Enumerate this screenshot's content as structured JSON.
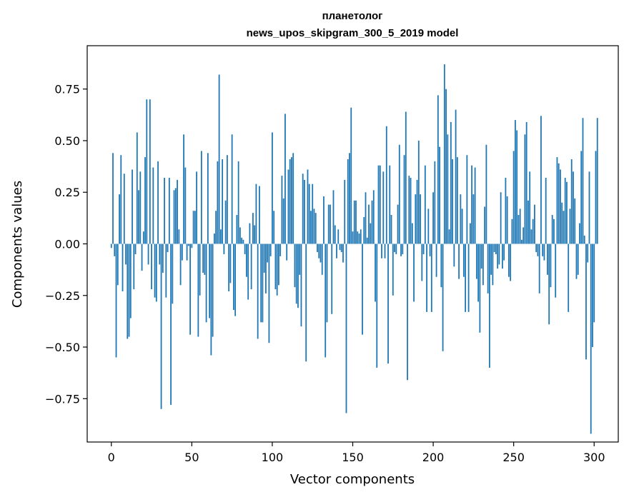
{
  "chart_data": {
    "type": "bar",
    "title_line1": "планетолог",
    "title_line2": "news_upos_skipgram_300_5_2019 model",
    "xlabel": "Vector components",
    "ylabel": "Components values",
    "xlim": [
      -15,
      315
    ],
    "ylim": [
      -0.96,
      0.96
    ],
    "xticks": [
      0,
      50,
      100,
      150,
      200,
      250,
      300
    ],
    "yticks": [
      -0.75,
      -0.5,
      -0.25,
      0.0,
      0.25,
      0.5,
      0.75
    ],
    "ytick_labels": [
      "−0.75",
      "−0.50",
      "−0.25",
      "0.00",
      "0.25",
      "0.50",
      "0.75"
    ],
    "xtick_labels": [
      "0",
      "50",
      "100",
      "150",
      "200",
      "250",
      "300"
    ],
    "bar_color": "#1f77b4",
    "grid": false,
    "values": [
      -0.02,
      0.44,
      -0.06,
      -0.55,
      -0.2,
      0.24,
      0.43,
      -0.23,
      0.34,
      -0.1,
      -0.46,
      -0.45,
      -0.36,
      0.36,
      -0.22,
      -0.05,
      0.54,
      0.26,
      0.35,
      -0.13,
      0.06,
      0.42,
      0.7,
      -0.1,
      0.7,
      -0.22,
      0.37,
      -0.26,
      -0.28,
      0.4,
      -0.1,
      -0.8,
      -0.14,
      0.32,
      -0.26,
      -0.04,
      0.32,
      -0.78,
      -0.29,
      0.26,
      0.27,
      0.31,
      0.07,
      -0.2,
      -0.08,
      0.53,
      0.37,
      -0.08,
      -0.01,
      -0.44,
      -0.02,
      0.16,
      0.16,
      0.35,
      -0.45,
      -0.25,
      0.45,
      -0.14,
      -0.15,
      -0.38,
      0.44,
      -0.36,
      -0.54,
      -0.45,
      0.05,
      0.16,
      0.4,
      0.82,
      0.07,
      0.41,
      -0.05,
      0.21,
      0.43,
      -0.23,
      -0.19,
      0.53,
      -0.32,
      -0.35,
      0.14,
      0.4,
      0.08,
      0.03,
      0.02,
      -0.05,
      -0.16,
      -0.27,
      0.1,
      -0.22,
      0.15,
      0.09,
      0.29,
      -0.46,
      0.28,
      -0.38,
      -0.38,
      -0.14,
      -0.24,
      -0.09,
      -0.48,
      -0.06,
      0.54,
      0.16,
      -0.22,
      -0.25,
      -0.2,
      -0.06,
      0.33,
      0.22,
      0.63,
      -0.08,
      0.36,
      0.41,
      0.42,
      0.44,
      -0.21,
      -0.29,
      -0.31,
      -0.15,
      -0.4,
      0.34,
      0.31,
      -0.57,
      0.36,
      0.29,
      0.16,
      0.29,
      0.17,
      0.15,
      -0.04,
      -0.07,
      -0.09,
      -0.15,
      0.23,
      -0.55,
      -0.38,
      0.19,
      0.19,
      -0.34,
      0.26,
      0.09,
      -0.07,
      0.07,
      -0.03,
      -0.04,
      -0.09,
      0.31,
      -0.82,
      0.41,
      0.44,
      0.66,
      0.06,
      0.21,
      0.21,
      0.06,
      0.05,
      0.07,
      -0.44,
      0.13,
      0.25,
      0.03,
      0.19,
      0.1,
      0.21,
      0.26,
      -0.28,
      -0.6,
      0.38,
      0.38,
      -0.07,
      0.35,
      -0.07,
      0.57,
      -0.58,
      0.38,
      0.14,
      -0.25,
      -0.04,
      -0.05,
      0.19,
      0.48,
      -0.06,
      -0.05,
      0.43,
      0.64,
      -0.66,
      0.33,
      0.32,
      0.1,
      -0.28,
      0.24,
      0.31,
      0.5,
      0.24,
      -0.18,
      -0.05,
      0.38,
      -0.33,
      0.17,
      -0.06,
      -0.33,
      0.25,
      0.4,
      -0.16,
      0.72,
      0.47,
      -0.21,
      -0.52,
      0.87,
      0.75,
      0.53,
      0.07,
      0.59,
      0.41,
      -0.11,
      0.65,
      0.42,
      -0.17,
      0.24,
      0.17,
      -0.16,
      -0.33,
      0.43,
      -0.33,
      0.1,
      0.38,
      0.24,
      0.37,
      -0.17,
      -0.28,
      -0.43,
      -0.12,
      -0.2,
      0.18,
      0.48,
      -0.24,
      -0.6,
      -0.15,
      -0.2,
      -0.04,
      -0.05,
      -0.12,
      -0.1,
      0.25,
      -0.12,
      -0.08,
      0.32,
      0.23,
      -0.16,
      -0.18,
      0.12,
      0.45,
      0.6,
      0.55,
      0.14,
      0.17,
      0.02,
      0.08,
      0.53,
      0.59,
      0.21,
      0.35,
      0.07,
      0.12,
      0.19,
      -0.04,
      -0.06,
      -0.24,
      0.62,
      -0.06,
      -0.08,
      0.32,
      -0.15,
      -0.39,
      -0.21,
      0.14,
      0.12,
      -0.26,
      0.42,
      0.39,
      0.36,
      0.2,
      0.16,
      0.32,
      0.3,
      -0.33,
      0.17,
      0.41,
      0.35,
      0.22,
      -0.17,
      -0.15,
      0.1,
      0.45,
      0.61,
      0.04,
      -0.56,
      -0.09,
      0.35,
      -0.92,
      -0.5,
      -0.38,
      0.45,
      0.61
    ]
  }
}
